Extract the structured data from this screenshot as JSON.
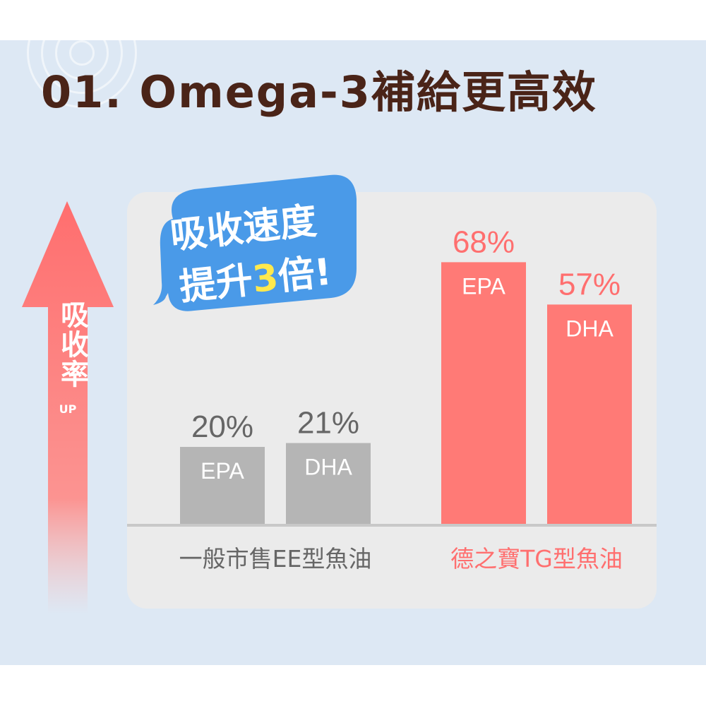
{
  "title": "01. Omega-3補給更高效",
  "arrow": {
    "label": "吸收率",
    "sub": "UP",
    "color": "#ff7a7a"
  },
  "bubble": {
    "line1": "吸收速度",
    "line2_prefix": "提升",
    "line2_number": "3",
    "line2_suffix": "倍!",
    "color": "#4a9ae8",
    "number_color": "#ffe94d"
  },
  "colors": {
    "title": "#4a2418",
    "gray_bar": "#b5b5b5",
    "red_bar": "#ff7a76",
    "gray_text": "#666666",
    "red_text": "#ff6f6f",
    "background": "#dde8f4",
    "panel": "#ebebeb"
  },
  "chart_data": {
    "type": "bar",
    "categories": [
      "一般市售EE型魚油",
      "德之寶TG型魚油"
    ],
    "series": [
      {
        "name": "EPA",
        "values": [
          20,
          68
        ]
      },
      {
        "name": "DHA",
        "values": [
          21,
          57
        ]
      }
    ],
    "value_labels": [
      [
        "20%",
        "21%"
      ],
      [
        "68%",
        "57%"
      ]
    ],
    "bar_labels": [
      "EPA",
      "DHA"
    ],
    "ylim": [
      0,
      100
    ]
  }
}
